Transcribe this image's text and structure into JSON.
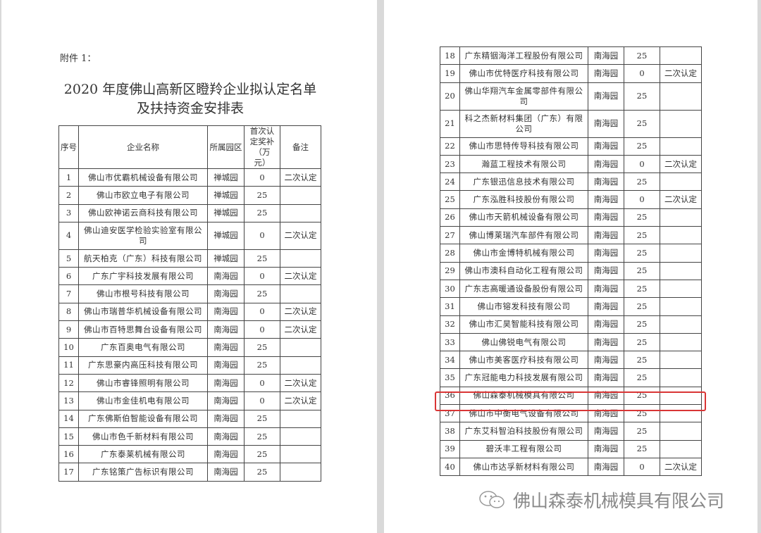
{
  "document": {
    "attachment_label": "附件 1：",
    "title_line1": "2020 年度佛山高新区瞪羚企业拟认定名单",
    "title_line2": "及扶持资金安排表",
    "headers": {
      "no": "序号",
      "name": "企业名称",
      "park": "所属园区",
      "amount": "首次认定奖补（万元）",
      "note": "备注"
    },
    "rows": [
      {
        "no": "1",
        "name": "佛山市优霸机械设备有限公司",
        "park": "禅城园",
        "amount": "0",
        "note": "二次认定"
      },
      {
        "no": "2",
        "name": "佛山市欧立电子有限公司",
        "park": "禅城园",
        "amount": "25",
        "note": ""
      },
      {
        "no": "3",
        "name": "佛山欧神诺云商科技有限公司",
        "park": "禅城园",
        "amount": "25",
        "note": ""
      },
      {
        "no": "4",
        "name": "佛山迪安医学检验实验室有限公司",
        "park": "禅城园",
        "amount": "0",
        "note": "二次认定"
      },
      {
        "no": "5",
        "name": "航天柏克（广东）科技有限公司",
        "park": "禅城园",
        "amount": "25",
        "note": ""
      },
      {
        "no": "6",
        "name": "广东广宇科技发展有限公司",
        "park": "南海园",
        "amount": "0",
        "note": "二次认定"
      },
      {
        "no": "7",
        "name": "佛山市根号科技有限公司",
        "park": "南海园",
        "amount": "25",
        "note": ""
      },
      {
        "no": "8",
        "name": "佛山市瑞普华机械设备有限公司",
        "park": "南海园",
        "amount": "0",
        "note": "二次认定"
      },
      {
        "no": "9",
        "name": "佛山市百特思舞台设备有限公司",
        "park": "南海园",
        "amount": "0",
        "note": "二次认定"
      },
      {
        "no": "10",
        "name": "广东百奥电气有限公司",
        "park": "南海园",
        "amount": "25",
        "note": ""
      },
      {
        "no": "11",
        "name": "广东思豪内高压科技有限公司",
        "park": "南海园",
        "amount": "25",
        "note": ""
      },
      {
        "no": "12",
        "name": "佛山市睿锋照明有限公司",
        "park": "南海园",
        "amount": "0",
        "note": "二次认定"
      },
      {
        "no": "13",
        "name": "佛山市金佳机电有限公司",
        "park": "南海园",
        "amount": "0",
        "note": "二次认定"
      },
      {
        "no": "14",
        "name": "广东佛斯伯智能设备有限公司",
        "park": "南海园",
        "amount": "25",
        "note": ""
      },
      {
        "no": "15",
        "name": "佛山市色千新材料有限公司",
        "park": "南海园",
        "amount": "25",
        "note": ""
      },
      {
        "no": "16",
        "name": "广东泰莱机械有限公司",
        "park": "南海园",
        "amount": "25",
        "note": ""
      },
      {
        "no": "17",
        "name": "广东铭策广告标识有限公司",
        "park": "南海园",
        "amount": "25",
        "note": ""
      },
      {
        "no": "18",
        "name": "广东精铟海洋工程股份有限公司",
        "park": "南海园",
        "amount": "25",
        "note": ""
      },
      {
        "no": "19",
        "name": "佛山市优特医疗科技有限公司",
        "park": "南海园",
        "amount": "0",
        "note": "二次认定"
      },
      {
        "no": "20",
        "name": "佛山华翔汽车金属零部件有限公司",
        "park": "南海园",
        "amount": "25",
        "note": ""
      },
      {
        "no": "21",
        "name": "科之杰新材料集团（广东）有限公司",
        "park": "南海园",
        "amount": "25",
        "note": ""
      },
      {
        "no": "22",
        "name": "佛山市思特传导科技有限公司",
        "park": "南海园",
        "amount": "25",
        "note": ""
      },
      {
        "no": "23",
        "name": "瀚蓝工程技术有限公司",
        "park": "南海园",
        "amount": "0",
        "note": "二次认定"
      },
      {
        "no": "24",
        "name": "广东银迅信息技术有限公司",
        "park": "南海园",
        "amount": "25",
        "note": ""
      },
      {
        "no": "25",
        "name": "广东泓胜科技股份有限公司",
        "park": "南海园",
        "amount": "0",
        "note": "二次认定"
      },
      {
        "no": "26",
        "name": "佛山市天箭机械设备有限公司",
        "park": "南海园",
        "amount": "25",
        "note": ""
      },
      {
        "no": "27",
        "name": "佛山博莱瑞汽车部件有限公司",
        "park": "南海园",
        "amount": "25",
        "note": ""
      },
      {
        "no": "28",
        "name": "佛山市金博特机械有限公司",
        "park": "南海园",
        "amount": "25",
        "note": ""
      },
      {
        "no": "29",
        "name": "佛山市澳科自动化工程有限公司",
        "park": "南海园",
        "amount": "25",
        "note": ""
      },
      {
        "no": "30",
        "name": "广东志高暖通设备股份有限公司",
        "park": "南海园",
        "amount": "25",
        "note": ""
      },
      {
        "no": "31",
        "name": "佛山市镕发科技有限公司",
        "park": "南海园",
        "amount": "25",
        "note": ""
      },
      {
        "no": "32",
        "name": "佛山市汇昊智能科技有限公司",
        "park": "南海园",
        "amount": "25",
        "note": ""
      },
      {
        "no": "33",
        "name": "佛山佛锐电气有限公司",
        "park": "南海园",
        "amount": "25",
        "note": ""
      },
      {
        "no": "34",
        "name": "佛山市美客医疗科技有限公司",
        "park": "南海园",
        "amount": "25",
        "note": ""
      },
      {
        "no": "35",
        "name": "广东冠能电力科技发展有限公司",
        "park": "南海园",
        "amount": "25",
        "note": ""
      },
      {
        "no": "36",
        "name": "佛山森泰机械模具有限公司",
        "park": "南海园",
        "amount": "25",
        "note": ""
      },
      {
        "no": "37",
        "name": "佛山市中衡电气设备有限公司",
        "park": "南海园",
        "amount": "25",
        "note": ""
      },
      {
        "no": "38",
        "name": "广东艾科智泊科技股份有限公司",
        "park": "南海园",
        "amount": "25",
        "note": ""
      },
      {
        "no": "39",
        "name": "碧沃丰工程有限公司",
        "park": "南海园",
        "amount": "25",
        "note": ""
      },
      {
        "no": "40",
        "name": "佛山市达孚新材料有限公司",
        "park": "南海园",
        "amount": "0",
        "note": "二次认定"
      }
    ],
    "highlighted_row_no": "36",
    "highlight_color": "#d93535"
  },
  "watermark": {
    "icon": "wechat-icon",
    "text": "佛山森泰机械模具有限公司"
  }
}
